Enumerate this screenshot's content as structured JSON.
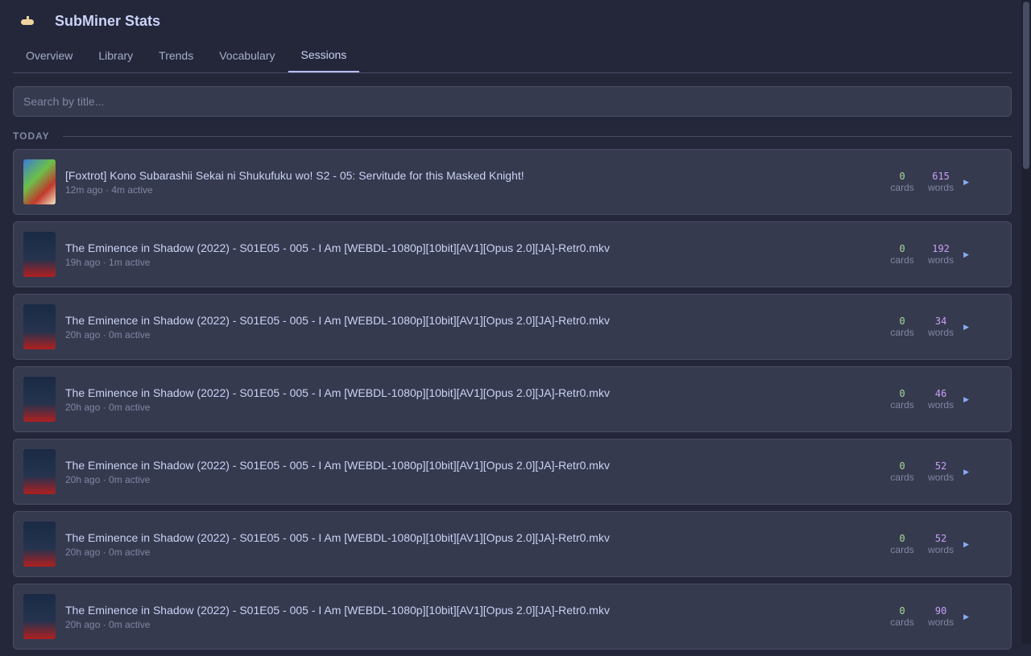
{
  "app": {
    "title": "SubMiner Stats",
    "logo": "submarine-icon"
  },
  "tabs": [
    {
      "label": "Overview"
    },
    {
      "label": "Library"
    },
    {
      "label": "Trends"
    },
    {
      "label": "Vocabulary"
    },
    {
      "label": "Sessions",
      "active": true
    }
  ],
  "search": {
    "placeholder": "Search by title...",
    "value": ""
  },
  "group": "TODAY",
  "labels": {
    "cards": "cards",
    "words": "words"
  },
  "sessions": [
    {
      "title": "[Foxtrot] Kono Subarashii Sekai ni Shukufuku wo! S2 - 05: Servitude for this Masked Knight!",
      "meta": "12m ago · 4m active",
      "cards": "0",
      "words": "615"
    },
    {
      "title": "The Eminence in Shadow (2022) - S01E05 - 005 - I Am [WEBDL-1080p][10bit][AV1][Opus 2.0][JA]-Retr0.mkv",
      "meta": "19h ago · 1m active",
      "cards": "0",
      "words": "192"
    },
    {
      "title": "The Eminence in Shadow (2022) - S01E05 - 005 - I Am [WEBDL-1080p][10bit][AV1][Opus 2.0][JA]-Retr0.mkv",
      "meta": "20h ago · 0m active",
      "cards": "0",
      "words": "34"
    },
    {
      "title": "The Eminence in Shadow (2022) - S01E05 - 005 - I Am [WEBDL-1080p][10bit][AV1][Opus 2.0][JA]-Retr0.mkv",
      "meta": "20h ago · 0m active",
      "cards": "0",
      "words": "46"
    },
    {
      "title": "The Eminence in Shadow (2022) - S01E05 - 005 - I Am [WEBDL-1080p][10bit][AV1][Opus 2.0][JA]-Retr0.mkv",
      "meta": "20h ago · 0m active",
      "cards": "0",
      "words": "52"
    },
    {
      "title": "The Eminence in Shadow (2022) - S01E05 - 005 - I Am [WEBDL-1080p][10bit][AV1][Opus 2.0][JA]-Retr0.mkv",
      "meta": "20h ago · 0m active",
      "cards": "0",
      "words": "52"
    },
    {
      "title": "The Eminence in Shadow (2022) - S01E05 - 005 - I Am [WEBDL-1080p][10bit][AV1][Opus 2.0][JA]-Retr0.mkv",
      "meta": "20h ago · 0m active",
      "cards": "0",
      "words": "90"
    }
  ],
  "colors": {
    "background": "#24273a",
    "surface": "#363a4f",
    "accent": "#b7bdf8",
    "cards": "#a6da95",
    "words": "#c6a0f6",
    "play": "#8aadf4"
  }
}
